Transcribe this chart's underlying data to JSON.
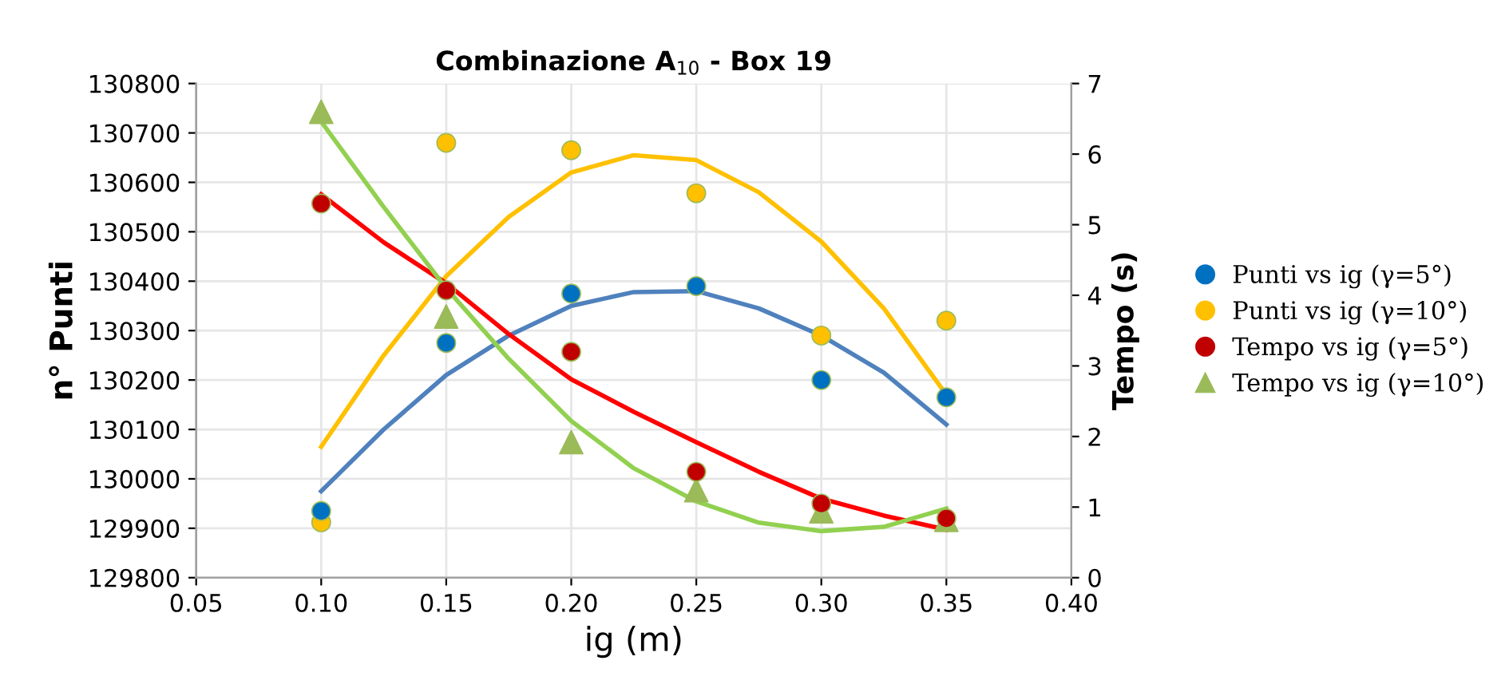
{
  "chart_data": {
    "type": "scatter",
    "title": "Combinazione A$_{10}$ - Box 19",
    "xlabel": "ig (m)",
    "ylabel": "n° Punti",
    "y2label": "Tempo (s)",
    "xlim": [
      0.05,
      0.4
    ],
    "xticks": [
      {
        "value": 0.05,
        "label": "0.05"
      },
      {
        "value": 0.1,
        "label": "0.10"
      },
      {
        "value": 0.15,
        "label": "0.15"
      },
      {
        "value": 0.2,
        "label": "0.20"
      },
      {
        "value": 0.25,
        "label": "0.25"
      },
      {
        "value": 0.3,
        "label": "0.30"
      },
      {
        "value": 0.35,
        "label": "0.35"
      },
      {
        "value": 0.4,
        "label": "0.40"
      }
    ],
    "ylim": [
      129800,
      130800
    ],
    "yticks": [
      129800,
      129900,
      130000,
      130100,
      130200,
      130300,
      130400,
      130500,
      130600,
      130700,
      130800
    ],
    "y2lim": [
      0,
      7
    ],
    "y2ticks": [
      0,
      1,
      2,
      3,
      4,
      5,
      6,
      7
    ],
    "grid": true,
    "legend": "right",
    "series": [
      {
        "name": "Punti vs ig (γ=5°)",
        "marker": "circle",
        "color": "#0070c0",
        "x": [
          0.1,
          0.15,
          0.2,
          0.25,
          0.3,
          0.35
        ],
        "values": [
          129935,
          130275,
          130375,
          130390,
          130200,
          130165
        ]
      },
      {
        "name": "Punti vs ig (γ=10°)",
        "marker": "circle",
        "color": "#ffc000",
        "x": [
          0.1,
          0.15,
          0.2,
          0.25,
          0.3,
          0.35
        ],
        "values": [
          129912,
          130680,
          130665,
          130578,
          130290,
          130320
        ]
      },
      {
        "name": "Tempo vs ig (γ=5°)",
        "marker": "circle",
        "color": "#c00000",
        "axis": "y2",
        "x": [
          0.1,
          0.15,
          0.2,
          0.25,
          0.3,
          0.35
        ],
        "values": [
          5.3,
          4.07,
          3.2,
          1.5,
          1.05,
          0.84
        ]
      },
      {
        "name": "Tempo vs ig (γ=10°)",
        "marker": "triangle",
        "color": "#9bbb59",
        "axis": "y2",
        "x": [
          0.1,
          0.15,
          0.2,
          0.25,
          0.3,
          0.35
        ],
        "values": [
          6.6,
          3.7,
          1.92,
          1.24,
          0.94,
          0.82
        ]
      },
      {
        "type": "line",
        "color": "#4f81bd",
        "x": [
          0.1,
          0.125,
          0.15,
          0.175,
          0.2,
          0.225,
          0.25,
          0.275,
          0.3,
          0.325,
          0.35
        ],
        "values": [
          129975,
          130100,
          130210,
          130290,
          130350,
          130378,
          130380,
          130345,
          130290,
          130215,
          130110
        ]
      },
      {
        "type": "line",
        "color": "#ffc000",
        "x": [
          0.1,
          0.125,
          0.15,
          0.175,
          0.2,
          0.225,
          0.25,
          0.275,
          0.3,
          0.325,
          0.35
        ],
        "values": [
          130065,
          130250,
          130410,
          130530,
          130620,
          130655,
          130645,
          130580,
          130480,
          130345,
          130170
        ]
      },
      {
        "type": "line",
        "color": "#ff0000",
        "axis": "y2",
        "x": [
          0.1,
          0.125,
          0.15,
          0.175,
          0.2,
          0.225,
          0.25,
          0.275,
          0.3,
          0.325,
          0.35
        ],
        "values": [
          5.43,
          4.75,
          4.17,
          3.45,
          2.81,
          2.35,
          1.92,
          1.5,
          1.12,
          0.88,
          0.68
        ]
      },
      {
        "type": "line",
        "color": "#92d050",
        "axis": "y2",
        "x": [
          0.1,
          0.125,
          0.15,
          0.175,
          0.2,
          0.225,
          0.25,
          0.275,
          0.3,
          0.325,
          0.35
        ],
        "values": [
          6.46,
          5.25,
          4.1,
          3.1,
          2.22,
          1.55,
          1.08,
          0.78,
          0.66,
          0.72,
          0.98
        ]
      }
    ]
  }
}
